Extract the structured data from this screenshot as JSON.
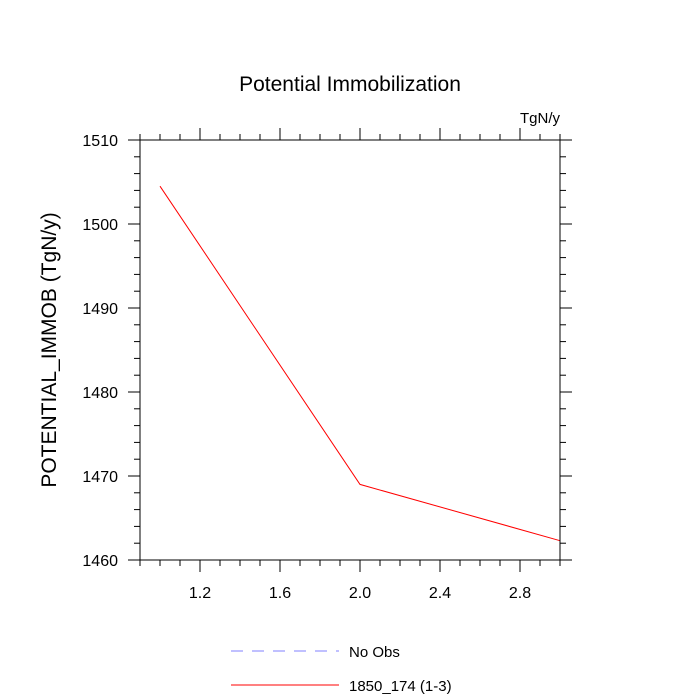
{
  "chart_data": {
    "type": "line",
    "title": "Potential Immobilization",
    "units_label": "TgN/y",
    "xlabel": "",
    "ylabel": "POTENTIAL_IMMOB  (TgN/y)",
    "xlim": [
      0.9,
      3.0
    ],
    "ylim": [
      1460,
      1510
    ],
    "x_ticks": [
      1.2,
      1.6,
      2.0,
      2.4,
      2.8
    ],
    "x_tick_labels": [
      "1.2",
      "1.6",
      "2.0",
      "2.4",
      "2.8"
    ],
    "y_ticks": [
      1460,
      1470,
      1480,
      1490,
      1500,
      1510
    ],
    "y_tick_labels": [
      "1460",
      "1470",
      "1480",
      "1490",
      "1500",
      "1510"
    ],
    "series": [
      {
        "name": "1850_174 (1-3)",
        "color": "#ff0000",
        "dash": "solid",
        "x": [
          1.0,
          2.0,
          3.0
        ],
        "values": [
          1504.5,
          1469.0,
          1462.3
        ]
      }
    ],
    "legend": [
      {
        "label": "No Obs",
        "color": "#8080ff",
        "dash": "dashed"
      },
      {
        "label": "1850_174 (1-3)",
        "color": "#ff0000",
        "dash": "solid"
      }
    ],
    "legend_position": "bottom-center"
  }
}
